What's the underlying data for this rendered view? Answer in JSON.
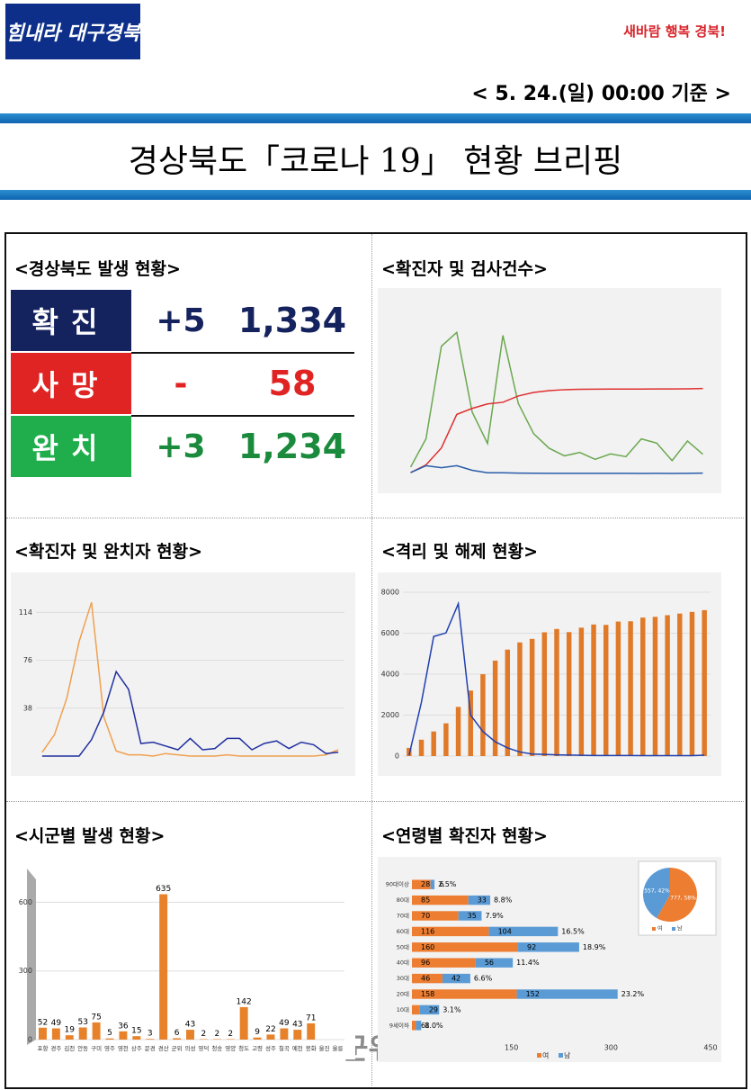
{
  "header": {
    "logo": "힘내라 대구경북",
    "slogan": "새바람 행복 경북!",
    "date": "< 5. 24.(일) 00:00 기준 >",
    "title": "경상북도「코로나 19」 현황 브리핑"
  },
  "panels": [
    "<경상북도 발생 현황>",
    "<확진자 및 검사건수>",
    "<확진자 및 완치자 현황>",
    "<격리 및 해제 현황>",
    "<시군별 발생 현황>",
    "<연령별 확진자 현황>"
  ],
  "stats": [
    {
      "label": "확진",
      "change": "+5",
      "total": "1,334",
      "color": "#14225e",
      "value_color": "#14225e"
    },
    {
      "label": "사망",
      "change": "-",
      "total": "58",
      "color": "#e02424",
      "value_color": "#e02424"
    },
    {
      "label": "완치",
      "change": "+3",
      "total": "1,234",
      "color": "#1fae4b",
      "value_color": "#1a8a3c"
    }
  ],
  "watermark": "군위넷",
  "chart_data": [
    {
      "type": "line",
      "ylim": [
        0,
        2600
      ],
      "series": [
        {
          "color": "#6aa84f",
          "values": [
            100,
            544,
            1997,
            2214,
            965,
            470,
            2167,
            1100,
            624,
            396,
            276,
            330,
            221,
            307,
            264,
            542,
            477,
            201,
            509,
            301
          ]
        },
        {
          "color": "#e03030",
          "values": [
            13,
            134,
            400,
            927,
            1021,
            1091,
            1117,
            1216,
            1272,
            1300,
            1315,
            1322,
            1323,
            1324,
            1324,
            1325,
            1326,
            1327,
            1328,
            1334
          ]
        },
        {
          "color": "#2a5caa",
          "values": [
            13,
            121,
            91,
            122,
            50,
            10,
            11,
            5,
            3,
            2,
            2,
            1,
            1,
            1,
            1,
            0,
            1,
            0,
            1,
            5
          ]
        }
      ]
    },
    {
      "type": "line",
      "ylim": [
        0,
        130
      ],
      "yticks": [
        38,
        76,
        114
      ],
      "series": [
        {
          "color": "#f0a050",
          "values": [
            3,
            17,
            46,
            91,
            122,
            31,
            4,
            1,
            1,
            0,
            2,
            1,
            0,
            0,
            0,
            1,
            0,
            0,
            0,
            0,
            0,
            0,
            0,
            1,
            5
          ]
        },
        {
          "color": "#2030a0",
          "values": [
            0,
            0,
            0,
            0,
            13,
            35,
            67,
            53,
            10,
            11,
            8,
            5,
            14,
            5,
            6,
            14,
            14,
            5,
            10,
            12,
            6,
            11,
            9,
            2,
            3
          ]
        }
      ]
    },
    {
      "type": "combo",
      "ylim": [
        0,
        8000
      ],
      "yticks": [
        0,
        2000,
        4000,
        6000,
        8000
      ],
      "y2lim": [
        0,
        20000
      ],
      "series": [
        {
          "color": "#e07a28",
          "axis": "y2",
          "values": [
            1000,
            2000,
            3000,
            4000,
            6000,
            8000,
            9993,
            11653,
            13000,
            13875,
            14308,
            15111,
            15517,
            15133,
            15673,
            16063,
            16014,
            16424,
            16454,
            16908,
            17000,
            17200,
            17400,
            17600,
            17817
          ]
        },
        {
          "color": "#2040b0",
          "values": [
            40,
            2620,
            5842,
            6014,
            7442,
            1997,
            1200,
            700,
            400,
            200,
            100,
            80,
            60,
            50,
            40,
            30,
            30,
            30,
            30,
            20,
            20,
            20,
            20,
            20,
            42
          ]
        }
      ]
    },
    {
      "type": "bar",
      "color": "#e8822a",
      "ylim": [
        0,
        700
      ],
      "yticks": [
        0,
        300,
        600
      ],
      "categories": [
        "포항",
        "경주",
        "김천",
        "안동",
        "구미",
        "영주",
        "영천",
        "상주",
        "문경",
        "경산",
        "군위",
        "의성",
        "영덕",
        "청송",
        "영양",
        "청도",
        "고령",
        "성주",
        "칠곡",
        "예천",
        "봉화",
        "울진",
        "울릉"
      ],
      "values": [
        52,
        49,
        19,
        53,
        75,
        5,
        36,
        15,
        3,
        635,
        6,
        43,
        2,
        2,
        2,
        142,
        9,
        22,
        49,
        43,
        71,
        0,
        0
      ]
    },
    {
      "type": "hbar_stacked",
      "xlim": [
        0,
        450
      ],
      "xticks": [
        150,
        300,
        450
      ],
      "categories": [
        "90대이상",
        "80대",
        "70대",
        "60대",
        "50대",
        "40대",
        "30대",
        "20대",
        "10대",
        "9세이하"
      ],
      "series": [
        {
          "name": "여",
          "color": "#ed7d31",
          "values": [
            28,
            85,
            70,
            116,
            160,
            96,
            46,
            158,
            12,
            6
          ]
        },
        {
          "name": "남",
          "color": "#5b9bd5",
          "values": [
            6,
            33,
            35,
            104,
            92,
            56,
            42,
            152,
            29,
            8
          ]
        }
      ],
      "percent_labels": [
        "2.5%",
        "8.8%",
        "7.9%",
        "16.5%",
        "18.9%",
        "11.4%",
        "6.6%",
        "23.2%",
        "3.1%",
        "1.0%"
      ],
      "pie": {
        "values": [
          777,
          557
        ],
        "value_labels": [
          "777, 58%",
          "557, 42%"
        ]
      }
    }
  ]
}
